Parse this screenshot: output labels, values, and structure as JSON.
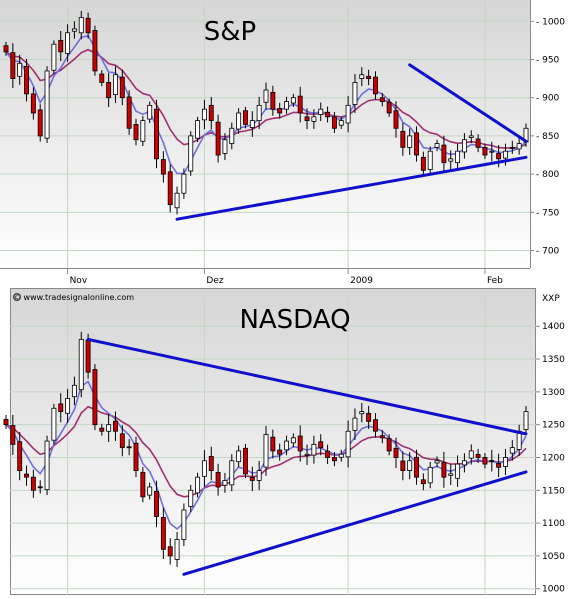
{
  "chart_data": [
    {
      "type": "candlestick",
      "title": "S&P",
      "y_ticks": [
        700,
        750,
        800,
        850,
        900,
        950,
        1000
      ],
      "ylim": [
        685,
        1020
      ],
      "x_labels": [
        {
          "label": "Nov",
          "index": 9
        },
        {
          "label": "Dez",
          "index": 29
        },
        {
          "label": "2009",
          "index": 50
        },
        {
          "label": "Feb",
          "index": 70
        }
      ],
      "num_days": 77,
      "up_color": "#ffffff",
      "down_color": "#cc0000",
      "ma_fast_color": "#6f6fe0",
      "ma_slow_color": "#a0306f",
      "trendline_color": "#1010cc",
      "closes": [
        960,
        925,
        945,
        905,
        880,
        850,
        935,
        970,
        960,
        985,
        990,
        1005,
        985,
        935,
        920,
        900,
        930,
        900,
        860,
        845,
        870,
        890,
        820,
        800,
        760,
        775,
        800,
        850,
        870,
        885,
        870,
        825,
        845,
        860,
        880,
        865,
        870,
        890,
        910,
        885,
        880,
        895,
        900,
        880,
        870,
        875,
        885,
        875,
        860,
        870,
        890,
        920,
        930,
        925,
        905,
        895,
        880,
        860,
        835,
        850,
        825,
        805,
        830,
        840,
        815,
        820,
        830,
        845,
        850,
        835,
        825,
        830,
        820,
        830,
        835,
        840,
        860
      ],
      "trendlines": [
        {
          "from": [
            25,
            741
          ],
          "to": [
            76,
            822
          ]
        },
        {
          "from": [
            59,
            943
          ],
          "to": [
            76,
            843
          ]
        }
      ]
    },
    {
      "type": "candlestick",
      "title": "NASDAQ",
      "unit_label": "XXP",
      "watermark": "© www.tradesignalonline.com",
      "y_ticks": [
        1000,
        1050,
        1100,
        1150,
        1200,
        1250,
        1300,
        1350,
        1400
      ],
      "ylim": [
        995,
        1440
      ],
      "num_days": 77,
      "up_color": "#ffffff",
      "down_color": "#cc0000",
      "ma_fast_color": "#6f6fe0",
      "ma_slow_color": "#a0306f",
      "trendline_color": "#1010cc",
      "closes": [
        1250,
        1220,
        1180,
        1170,
        1150,
        1155,
        1225,
        1275,
        1270,
        1290,
        1310,
        1380,
        1330,
        1250,
        1240,
        1250,
        1240,
        1215,
        1215,
        1180,
        1140,
        1155,
        1110,
        1060,
        1050,
        1075,
        1120,
        1150,
        1170,
        1195,
        1180,
        1155,
        1165,
        1195,
        1210,
        1175,
        1165,
        1180,
        1235,
        1210,
        1205,
        1225,
        1230,
        1210,
        1205,
        1220,
        1215,
        1200,
        1195,
        1205,
        1240,
        1260,
        1270,
        1255,
        1240,
        1230,
        1210,
        1200,
        1180,
        1195,
        1170,
        1160,
        1185,
        1195,
        1170,
        1175,
        1190,
        1195,
        1210,
        1200,
        1190,
        1195,
        1185,
        1200,
        1215,
        1240,
        1270
      ],
      "trendlines": [
        {
          "from": [
            12,
            1380
          ],
          "to": [
            76,
            1236
          ]
        },
        {
          "from": [
            26,
            1022
          ],
          "to": [
            76,
            1178
          ]
        }
      ]
    }
  ]
}
